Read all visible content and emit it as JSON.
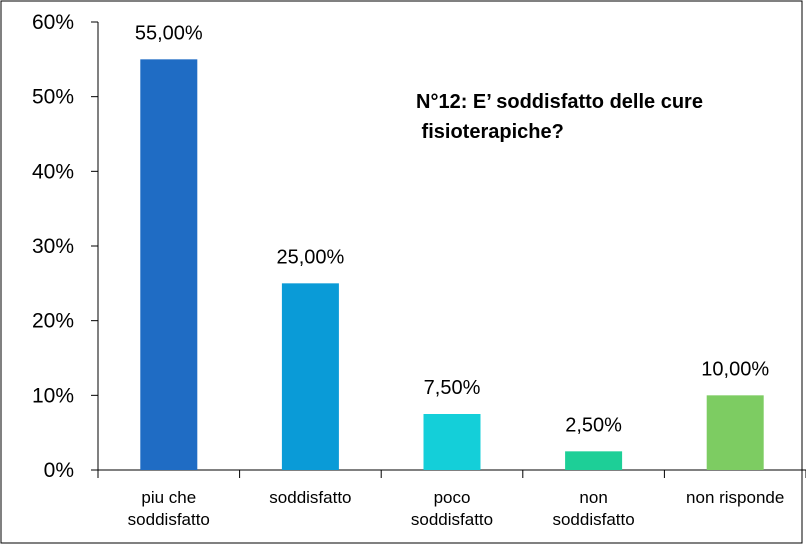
{
  "chart_data": {
    "type": "bar",
    "title": "N°12: E’ soddisfatto delle cure fisioterapiche?",
    "categories": [
      "piu che soddisfatto",
      "soddisfatto",
      "poco soddisfatto",
      "non soddisfatto",
      "non risponde"
    ],
    "values": [
      55,
      25,
      7.5,
      2.5,
      10
    ],
    "value_labels": [
      "55,00%",
      "25,00%",
      "7,50%",
      "2,50%",
      "10,00%"
    ],
    "colors": [
      "#1f6cc4",
      "#0a9bd7",
      "#14cfd9",
      "#1dcf97",
      "#7dcc62"
    ],
    "ylim": [
      0,
      60
    ],
    "yticks": [
      {
        "value": 0,
        "label": "0%"
      },
      {
        "value": 10,
        "label": "10%"
      },
      {
        "value": 20,
        "label": "20%"
      },
      {
        "value": 30,
        "label": "30%"
      },
      {
        "value": 40,
        "label": "40%"
      },
      {
        "value": 50,
        "label": "50%"
      },
      {
        "value": 60,
        "label": "60%"
      }
    ]
  }
}
